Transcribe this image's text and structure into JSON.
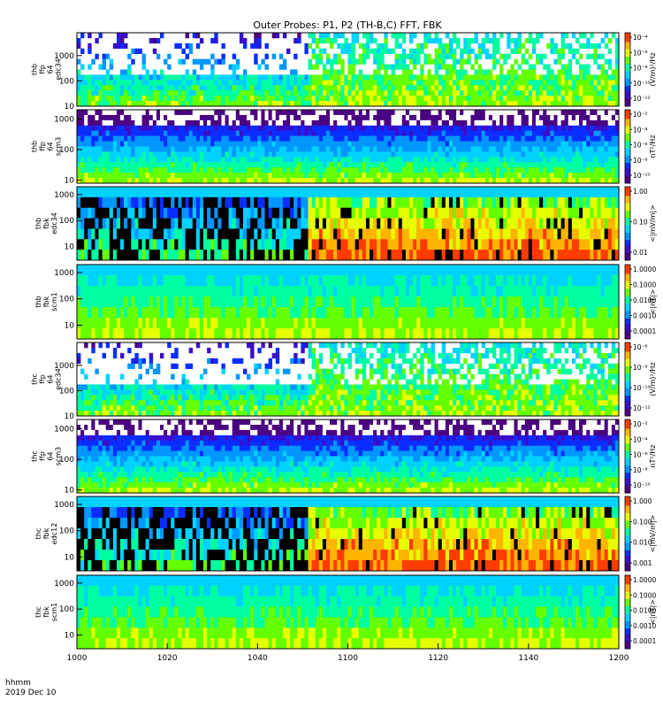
{
  "title": "Outer Probes: P1, P2 (TH-B,C) FFT, FBK",
  "time_axis": {
    "ticks": [
      "1000",
      "1020",
      "1040",
      "1100",
      "1120",
      "1140",
      "1200"
    ],
    "label_line1": "hhmm",
    "label_line2": "2019 Dec 10"
  },
  "colors": {
    "background": "#ffffff",
    "saturated": "#000000",
    "colormap": [
      "#4b0082",
      "#3a0ec8",
      "#0a2dff",
      "#0096ff",
      "#00d2ff",
      "#00ffa0",
      "#64ff00",
      "#e6ff00",
      "#ffb400",
      "#ff3c00"
    ]
  },
  "chart_data": [
    {
      "type": "heatmap",
      "ylabel": [
        "thb",
        "ffp",
        "64",
        "edc34"
      ],
      "yticks": [
        "10",
        "100",
        "1000"
      ],
      "ylog": true,
      "ylim": [
        10,
        8000
      ],
      "colorbar": {
        "label": "(V/m)²/Hz",
        "ticks": [
          "10⁻⁴",
          "10⁻⁶",
          "10⁻⁸",
          "10⁻¹⁰",
          "10⁻¹²"
        ]
      }
    },
    {
      "type": "heatmap",
      "ylabel": [
        "thb",
        "ffp",
        "64",
        "scm3"
      ],
      "yticks": [
        "10",
        "100",
        "1000"
      ],
      "ylog": true,
      "ylim": [
        8,
        2000
      ],
      "colorbar": {
        "label": "nT²/Hz",
        "ticks": [
          "10⁻²",
          "10⁻⁴",
          "10⁻⁶",
          "10⁻⁸",
          "10⁻¹⁰"
        ]
      }
    },
    {
      "type": "heatmap",
      "ylabel": [
        "thb",
        "fbk",
        "edc34"
      ],
      "yticks": [
        "10",
        "100",
        "1000"
      ],
      "ylog": true,
      "ylim": [
        3,
        2000
      ],
      "colorbar": {
        "label": "<|mV/m|>",
        "ticks": [
          "1.00",
          "0.10",
          "0.01"
        ]
      }
    },
    {
      "type": "heatmap",
      "ylabel": [
        "thb",
        "fbk",
        "scm1"
      ],
      "yticks": [
        "10",
        "100",
        "1000"
      ],
      "ylog": true,
      "ylim": [
        3,
        2000
      ],
      "colorbar": {
        "label": "<|nT|>",
        "ticks": [
          "1.0000",
          "0.1000",
          "0.0100",
          "0.0010",
          "0.0001"
        ]
      }
    },
    {
      "type": "heatmap",
      "ylabel": [
        "thc",
        "ffp",
        "64",
        "edc34"
      ],
      "yticks": [
        "10",
        "100",
        "1000"
      ],
      "ylog": true,
      "ylim": [
        10,
        8000
      ],
      "colorbar": {
        "label": "(V/m)²/Hz",
        "ticks": [
          "10⁻⁶",
          "10⁻⁸",
          "10⁻¹⁰",
          "10⁻¹²"
        ]
      }
    },
    {
      "type": "heatmap",
      "ylabel": [
        "thc",
        "ffp",
        "64",
        "scm3"
      ],
      "yticks": [
        "10",
        "100",
        "1000"
      ],
      "ylog": true,
      "ylim": [
        8,
        2000
      ],
      "colorbar": {
        "label": "nT²/Hz",
        "ticks": [
          "10⁻²",
          "10⁻⁴",
          "10⁻⁶",
          "10⁻⁸",
          "10⁻¹⁰"
        ]
      }
    },
    {
      "type": "heatmap",
      "ylabel": [
        "thc",
        "fbk",
        "edc12"
      ],
      "yticks": [
        "10",
        "100",
        "1000"
      ],
      "ylog": true,
      "ylim": [
        3,
        2000
      ],
      "colorbar": {
        "label": "<|mV/m|>",
        "ticks": [
          "1.000",
          "0.100",
          "0.010",
          "0.001"
        ]
      }
    },
    {
      "type": "heatmap",
      "ylabel": [
        "thc",
        "fbk",
        "scm1"
      ],
      "yticks": [
        "10",
        "100",
        "1000"
      ],
      "ylog": true,
      "ylim": [
        3,
        2000
      ],
      "colorbar": {
        "label": "<|nT|>",
        "ticks": [
          "1.0000",
          "0.1000",
          "0.0100",
          "0.0010",
          "0.0001"
        ]
      }
    }
  ]
}
